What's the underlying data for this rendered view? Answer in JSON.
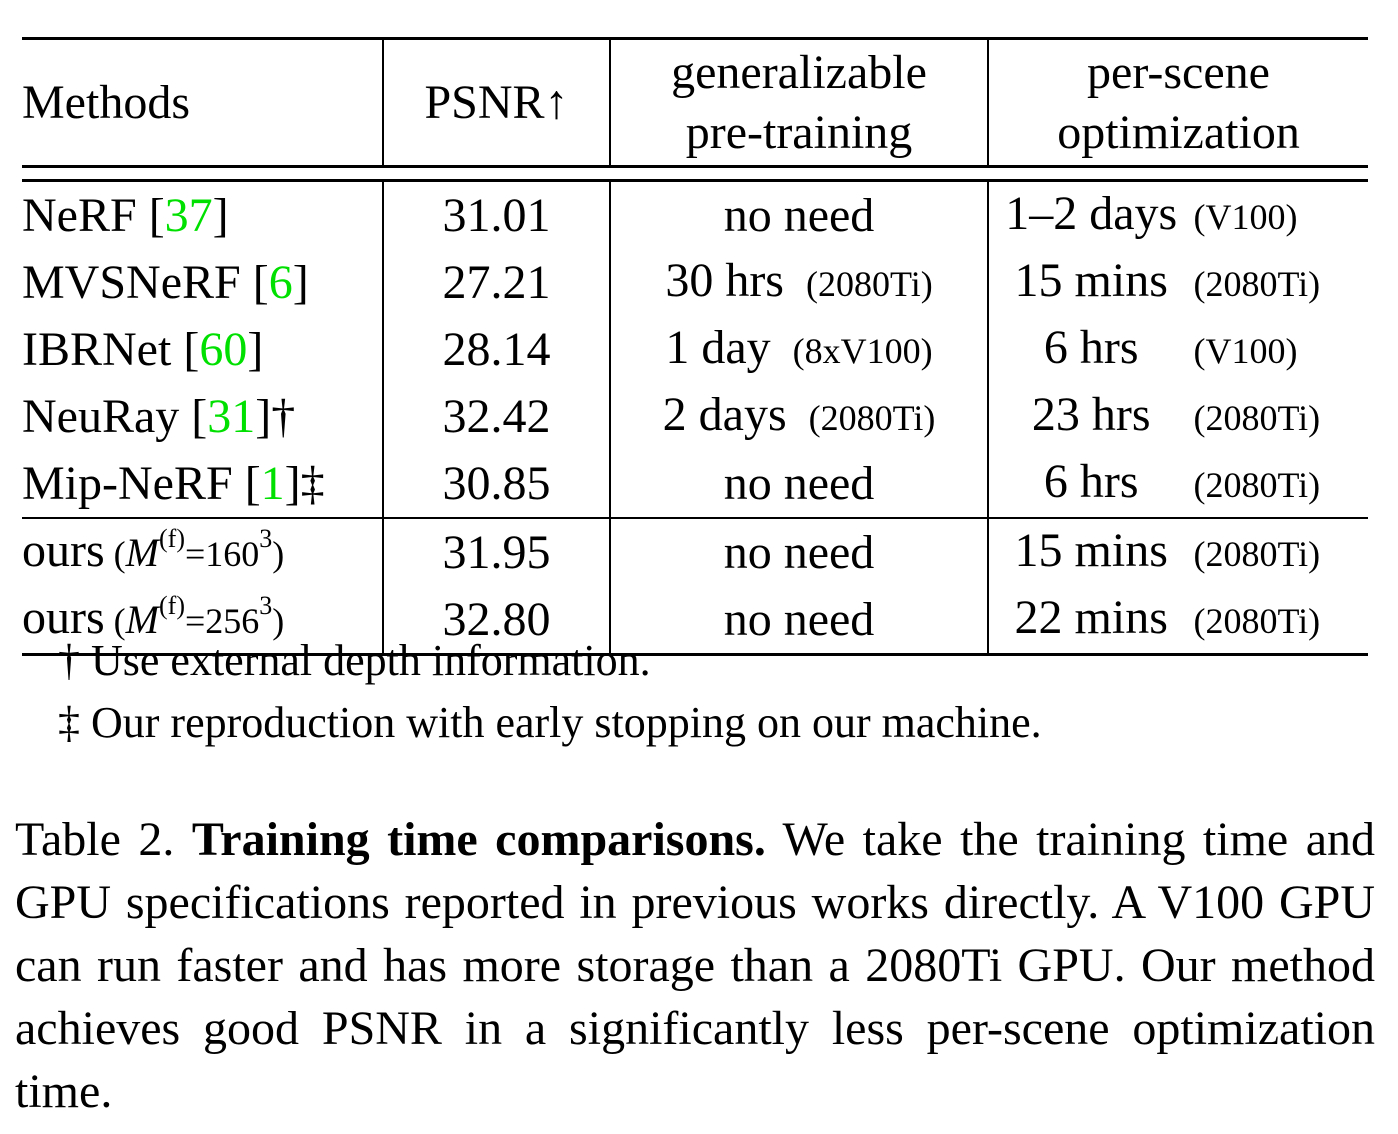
{
  "table": {
    "headers": {
      "method": "Methods",
      "psnr": "PSNR↑",
      "pretrain_line1": "generalizable",
      "pretrain_line2": "pre-training",
      "perscene_line1": "per-scene",
      "perscene_line2": "optimization"
    },
    "rows": [
      {
        "name": "NeRF",
        "cite_open": " [",
        "cite": "37",
        "cite_close": "]",
        "mark": "",
        "psnr": "31.01",
        "pretrain_time": "no need",
        "pretrain_gpu": "",
        "opt_time": "1–2 days",
        "opt_gpu": "(V100)"
      },
      {
        "name": "MVSNeRF",
        "cite_open": " [",
        "cite": "6",
        "cite_close": "]",
        "mark": "",
        "psnr": "27.21",
        "pretrain_time": "30 hrs",
        "pretrain_gpu": "(2080Ti)",
        "opt_time": "15 mins",
        "opt_gpu": "(2080Ti)"
      },
      {
        "name": "IBRNet",
        "cite_open": " [",
        "cite": "60",
        "cite_close": "]",
        "mark": "",
        "psnr": "28.14",
        "pretrain_time": "1 day",
        "pretrain_gpu": "(8xV100)",
        "opt_time": "6 hrs",
        "opt_gpu": "(V100)"
      },
      {
        "name": "NeuRay",
        "cite_open": " [",
        "cite": "31",
        "cite_close": "]",
        "mark": "†",
        "psnr": "32.42",
        "pretrain_time": "2 days",
        "pretrain_gpu": "(2080Ti)",
        "opt_time": "23 hrs",
        "opt_gpu": "(2080Ti)"
      },
      {
        "name": "Mip-NeRF",
        "cite_open": " [",
        "cite": "1",
        "cite_close": "]",
        "mark": "‡",
        "psnr": "30.85",
        "pretrain_time": "no need",
        "pretrain_gpu": "",
        "opt_time": "6 hrs",
        "opt_gpu": "(2080Ti)"
      }
    ],
    "ours": [
      {
        "name": "ours",
        "paren_open": " (",
        "var": "M",
        "sup": "(f)",
        "eq": "=160",
        "exp": "3",
        "paren_close": ")",
        "psnr": "31.95",
        "pretrain_time": "no need",
        "opt_time": "15 mins",
        "opt_gpu": "(2080Ti)"
      },
      {
        "name": "ours",
        "paren_open": " (",
        "var": "M",
        "sup": "(f)",
        "eq": "=256",
        "exp": "3",
        "paren_close": ")",
        "psnr": "32.80",
        "pretrain_time": "no need",
        "opt_time": "22 mins",
        "opt_gpu": "(2080Ti)"
      }
    ],
    "cite_color": "#00e000"
  },
  "footnotes": [
    {
      "mark": "†",
      "text": " Use external depth information."
    },
    {
      "mark": "‡",
      "text": " Our reproduction with early stopping on our machine."
    }
  ],
  "caption": {
    "label": "Table 2. ",
    "title": "Training time comparisons.",
    "body": " We take the training time and GPU specifications reported in previous works directly.  A V100 GPU can run faster and has more storage than a 2080Ti GPU. Our method achieves good PSNR in a significantly less per-scene optimization time."
  }
}
